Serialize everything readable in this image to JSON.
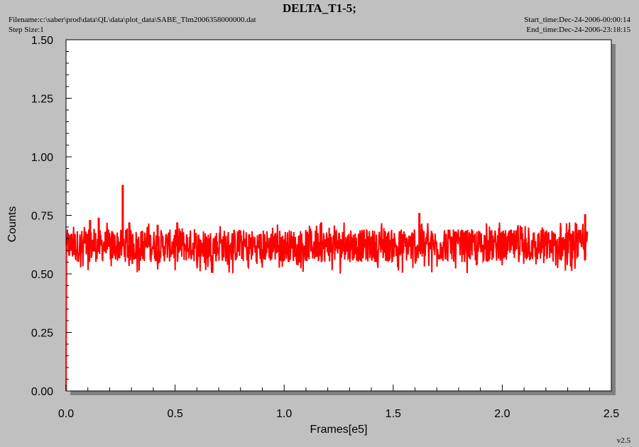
{
  "header": {
    "title": "DELTA_T1-5;",
    "filename": "Filename:c:\\saber\\prod\\data\\QL\\data\\plot_data\\SABE_Tlm2006358000000.dat",
    "step_size": "Step Size:1",
    "start_time": "Start_time:Dec-24-2006-00:00:14",
    "end_time": "End_time:Dec-24-2006-23:18:15",
    "version": "v2.5"
  },
  "colors": {
    "background": "#c0c0c0",
    "plot_area": "#ffffff",
    "series": "#ff0000",
    "shadow": "#808080"
  },
  "chart_data": {
    "type": "line",
    "title": "DELTA_T1-5;",
    "xlabel": "Frames[e5]",
    "ylabel": "Counts",
    "xlim": [
      0,
      2.5
    ],
    "ylim": [
      0,
      1.5
    ],
    "x_ticks": [
      "0.0",
      "0.5",
      "1.0",
      "1.5",
      "2.0",
      "2.5"
    ],
    "y_ticks": [
      "0.00",
      "0.25",
      "0.50",
      "0.75",
      "1.00",
      "1.25",
      "1.50"
    ],
    "grid": false,
    "series": [
      {
        "color": "#ff0000",
        "x_range": [
          0,
          2.39
        ],
        "typical_low": 0.55,
        "typical_high": 0.69,
        "min_envelope": 0.5,
        "max_envelope": 0.72,
        "start_value": 0.0,
        "spikes": [
          {
            "x": 0.11,
            "y": 0.73
          },
          {
            "x": 0.15,
            "y": 0.74
          },
          {
            "x": 0.26,
            "y": 0.88
          },
          {
            "x": 0.29,
            "y": 0.72
          },
          {
            "x": 0.42,
            "y": 0.71
          },
          {
            "x": 0.51,
            "y": 0.72
          },
          {
            "x": 1.17,
            "y": 0.72
          },
          {
            "x": 1.62,
            "y": 0.76
          },
          {
            "x": 2.38,
            "y": 0.755
          }
        ]
      }
    ]
  }
}
